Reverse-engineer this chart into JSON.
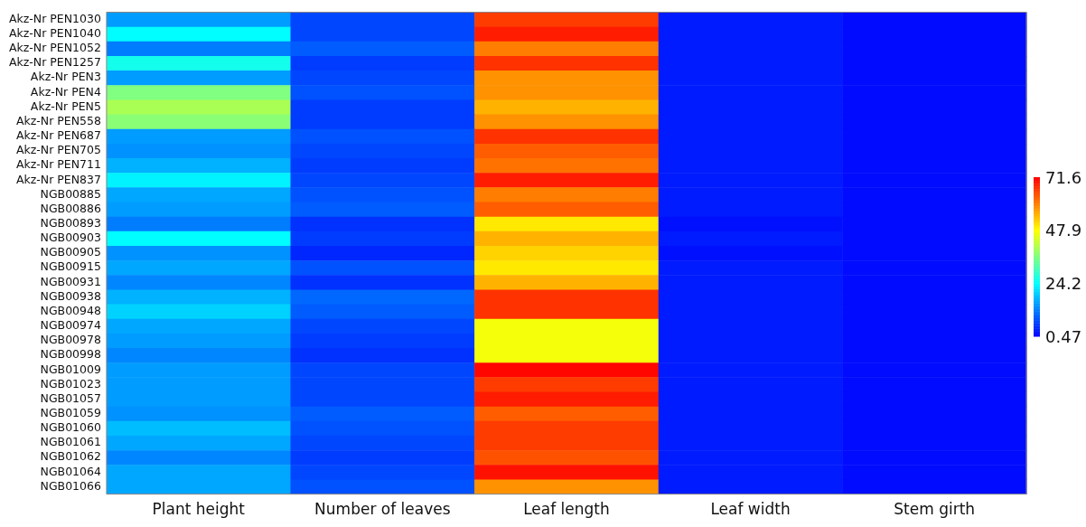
{
  "chart_data": {
    "type": "heatmap",
    "categories": [
      "Plant height",
      "Number of leaves",
      "Leaf length",
      "Leaf width",
      "Stem girth"
    ],
    "y_categories": [
      "Akz-Nr PEN1030",
      "Akz-Nr PEN1040",
      "Akz-Nr PEN1052",
      "Akz-Nr PEN1257",
      "Akz-Nr PEN3",
      "Akz-Nr PEN4",
      "Akz-Nr PEN5",
      "Akz-Nr PEN558",
      "Akz-Nr PEN687",
      "Akz-Nr PEN705",
      "Akz-Nr PEN711",
      "Akz-Nr PEN837",
      "NGB00885",
      "NGB00886",
      "NGB00893",
      "NGB00903",
      "NGB00905",
      "NGB00915",
      "NGB00931",
      "NGB00938",
      "NGB00948",
      "NGB00974",
      "NGB00978",
      "NGB00998",
      "NGB01009",
      "NGB01023",
      "NGB01057",
      "NGB01059",
      "NGB01060",
      "NGB01061",
      "NGB01062",
      "NGB01064",
      "NGB01066"
    ],
    "cells": [
      [
        15,
        7,
        66,
        3,
        1.5
      ],
      [
        24,
        7,
        69,
        3,
        1.5
      ],
      [
        12,
        9,
        60,
        3,
        1.5
      ],
      [
        26,
        6,
        67,
        3,
        1.5
      ],
      [
        15,
        7,
        58,
        3,
        1.5
      ],
      [
        36,
        8,
        58,
        3,
        1.5
      ],
      [
        40,
        6,
        55,
        3,
        1.5
      ],
      [
        37,
        6,
        58,
        3,
        1.5
      ],
      [
        15,
        8,
        67,
        3,
        1.5
      ],
      [
        14,
        7,
        63,
        3,
        1.5
      ],
      [
        17,
        6,
        61,
        3,
        1.5
      ],
      [
        23,
        7,
        69,
        3,
        1.5
      ],
      [
        16,
        8,
        60,
        3,
        1.5
      ],
      [
        15,
        9,
        63,
        3,
        1.5
      ],
      [
        12,
        5,
        50,
        2,
        1.5
      ],
      [
        24,
        6,
        55,
        3,
        1.5
      ],
      [
        14,
        4,
        52,
        2,
        1.5
      ],
      [
        16,
        8,
        50,
        3,
        1.5
      ],
      [
        13,
        5,
        55,
        3,
        1.5
      ],
      [
        17,
        10,
        67,
        3,
        1.5
      ],
      [
        20,
        9,
        67,
        3,
        1.5
      ],
      [
        16,
        7,
        47,
        3,
        1.5
      ],
      [
        15,
        6,
        47,
        3,
        1.5
      ],
      [
        13,
        5,
        47,
        3,
        1.5
      ],
      [
        15,
        7,
        71,
        3,
        1.5
      ],
      [
        15,
        7,
        66,
        3,
        1.5
      ],
      [
        15,
        7,
        69,
        3,
        1.5
      ],
      [
        14,
        9,
        63,
        3,
        1.5
      ],
      [
        18,
        8,
        66,
        3,
        1.5
      ],
      [
        16,
        7,
        66,
        3,
        1.5
      ],
      [
        13,
        6,
        64,
        3,
        1.5
      ],
      [
        16,
        7,
        70,
        3,
        1.5
      ],
      [
        16,
        8,
        58,
        3,
        1.5
      ]
    ],
    "clim": [
      0.47,
      71.6
    ],
    "cticks": [
      0.47,
      24.2,
      47.9,
      71.6
    ]
  }
}
